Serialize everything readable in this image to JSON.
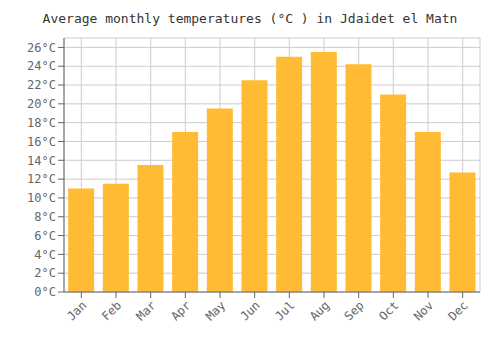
{
  "chart_data": {
    "type": "bar",
    "title": "Average monthly temperatures (°C ) in Jdaidet el Matn",
    "categories": [
      "Jan",
      "Feb",
      "Mar",
      "Apr",
      "May",
      "Jun",
      "Jul",
      "Aug",
      "Sep",
      "Oct",
      "Nov",
      "Dec"
    ],
    "values": [
      11.0,
      11.5,
      13.5,
      17.0,
      19.5,
      22.5,
      25.0,
      25.5,
      24.2,
      21.0,
      17.0,
      12.7
    ],
    "color": "#FFBB33",
    "ylim": [
      0,
      27
    ],
    "yticks": [
      {
        "value": 0,
        "label": "0°C"
      },
      {
        "value": 2,
        "label": "2°C"
      },
      {
        "value": 4,
        "label": "4°C"
      },
      {
        "value": 6,
        "label": "6°C"
      },
      {
        "value": 8,
        "label": "8°C"
      },
      {
        "value": 10,
        "label": "10°C"
      },
      {
        "value": 12,
        "label": "12°C"
      },
      {
        "value": 14,
        "label": "14°C"
      },
      {
        "value": 16,
        "label": "16°C"
      },
      {
        "value": 18,
        "label": "18°C"
      },
      {
        "value": 20,
        "label": "20°C"
      },
      {
        "value": 22,
        "label": "22°C"
      },
      {
        "value": 24,
        "label": "24°C"
      },
      {
        "value": 26,
        "label": "26°C"
      }
    ],
    "grid": true
  }
}
